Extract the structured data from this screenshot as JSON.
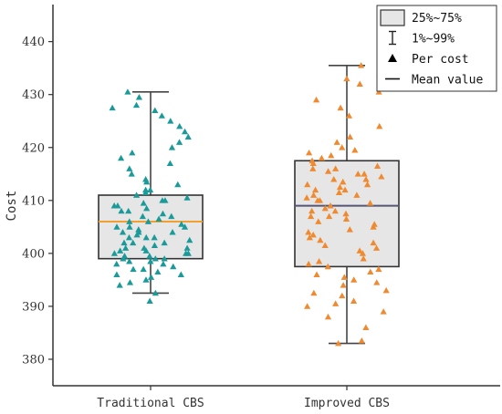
{
  "chart_data": {
    "type": "box",
    "ylabel": "Cost",
    "xlabel": "",
    "ylim": [
      375,
      447
    ],
    "yticks": [
      380,
      390,
      400,
      410,
      420,
      430,
      440
    ],
    "categories": [
      "Traditional CBS",
      "Improved CBS"
    ],
    "series": [
      {
        "category": "Traditional CBS",
        "whisker_low": 392.5,
        "q1": 399,
        "median": 406,
        "q3": 411,
        "whisker_high": 430.5,
        "mean_color": "#f0a030",
        "point_color": "#1b9a9a",
        "points": [
          391,
          392.5,
          394,
          394.5,
          395,
          395.5,
          396,
          396,
          396.5,
          397,
          397,
          397.5,
          398,
          398,
          398.5,
          398.5,
          399,
          399,
          399,
          399.5,
          399.5,
          400,
          400,
          400,
          400.5,
          400.5,
          401,
          401,
          401,
          401.5,
          402,
          402,
          402,
          402.5,
          403,
          403,
          403,
          403.5,
          404,
          404,
          404,
          404.5,
          405,
          405,
          405,
          405.5,
          406,
          406,
          406.5,
          407,
          407,
          407.5,
          408,
          408,
          408.5,
          409,
          409,
          409.5,
          410,
          410,
          410.5,
          411,
          411.5,
          412,
          412,
          413,
          413.5,
          414,
          415,
          416,
          417,
          418,
          419,
          420,
          421,
          422,
          423,
          424,
          425,
          426,
          427,
          427.5,
          428,
          429.5,
          430.5
        ]
      },
      {
        "category": "Improved CBS",
        "whisker_low": 383,
        "q1": 397.5,
        "median": 409,
        "q3": 417.5,
        "whisker_high": 435.5,
        "mean_color": "#555577",
        "point_color": "#f08a30",
        "points": [
          383,
          383.5,
          386,
          388,
          389,
          390,
          390.5,
          391,
          392,
          392.5,
          393,
          394,
          394.5,
          395,
          395.5,
          396,
          396.5,
          397,
          397.5,
          398,
          398.5,
          399,
          400,
          400.5,
          401,
          401.5,
          402,
          402.5,
          403,
          403.5,
          404,
          404.5,
          405,
          405.5,
          406,
          406.5,
          407,
          407,
          407.5,
          408,
          408,
          408.5,
          409,
          409.5,
          410,
          410,
          410.5,
          411,
          411,
          411.5,
          412,
          412,
          412.5,
          413,
          413,
          413.5,
          414,
          414,
          414.5,
          415,
          415,
          415.5,
          416,
          416,
          416.5,
          417,
          417.5,
          418,
          418.5,
          419,
          419.5,
          420,
          421,
          422,
          424,
          426,
          427.5,
          429,
          430.5,
          432,
          433,
          434,
          435.5
        ]
      }
    ],
    "legend": {
      "placement": "top-right",
      "items": [
        {
          "label": "25%~75%",
          "kind": "box"
        },
        {
          "label": "1%~99%",
          "kind": "whisker"
        },
        {
          "label": "Per cost",
          "kind": "triangle"
        },
        {
          "label": "Mean value",
          "kind": "line"
        }
      ]
    },
    "colors": {
      "box_fill": "#e6e6e6",
      "box_edge": "#333333",
      "whisker": "#444444",
      "axis": "#333333"
    }
  }
}
